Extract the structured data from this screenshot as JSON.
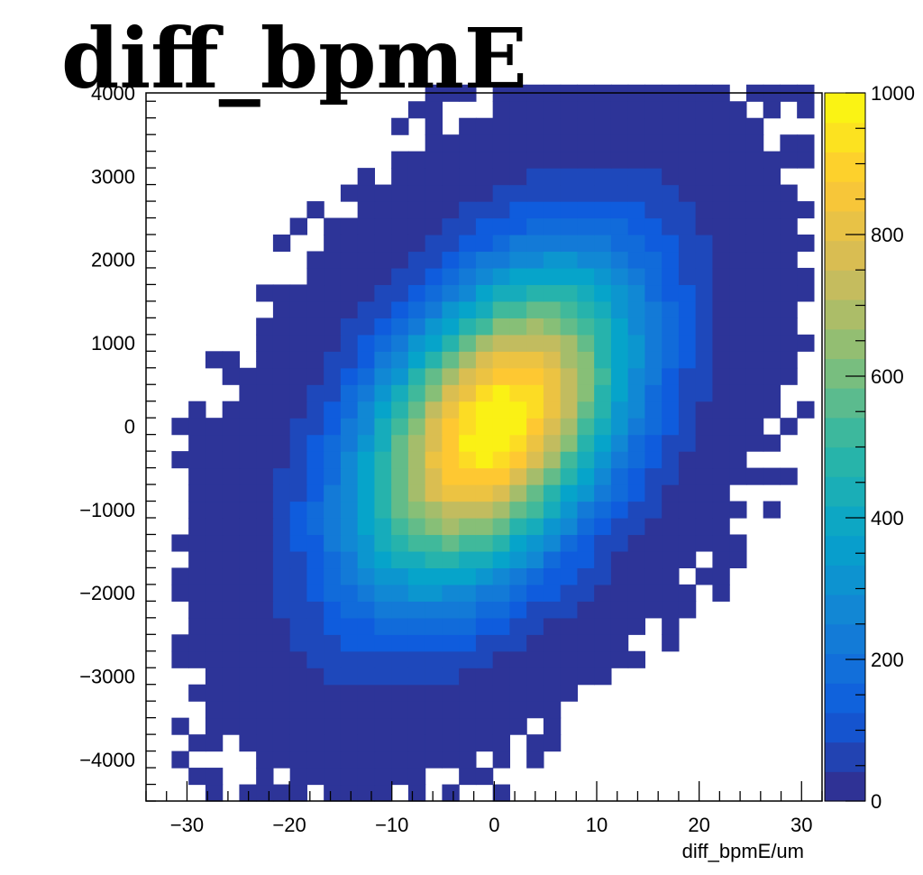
{
  "chart_data": {
    "type": "heatmap",
    "title": "diff_bpmE",
    "xlabel": "diff_bpmE/um",
    "ylabel": "",
    "xlim": [
      -34,
      32
    ],
    "ylim": [
      -4500,
      4000
    ],
    "x_ticks": [
      -30,
      -20,
      -10,
      0,
      10,
      20,
      30
    ],
    "x_tick_labels": [
      "−30",
      "−20",
      "−10",
      "0",
      "10",
      "20",
      "30"
    ],
    "y_ticks": [
      -4000,
      -3000,
      -2000,
      -1000,
      0,
      1000,
      2000,
      3000,
      4000
    ],
    "y_tick_labels": [
      "−4000",
      "−3000",
      "−2000",
      "−1000",
      "0",
      "1000",
      "2000",
      "3000",
      "4000"
    ],
    "colorbar": {
      "min": 0,
      "max": 1000,
      "ticks": [
        0,
        200,
        400,
        600,
        800,
        1000
      ],
      "tick_labels": [
        "0",
        "200",
        "400",
        "600",
        "800",
        "1000"
      ],
      "palette": [
        "#352a87",
        "#0f5cdd",
        "#1481d6",
        "#06a4ca",
        "#2eb7a4",
        "#87bf77",
        "#d1bb59",
        "#fec832",
        "#f9fb0e"
      ]
    },
    "distribution": {
      "shape": "bivariate-gaussian",
      "peak_counts": 1000,
      "center_x": 0,
      "center_y": 0,
      "sigma_x": 9,
      "sigma_y": 1300,
      "correlation": 0.45,
      "x_bin_width_um": 1.65,
      "y_bin_height": 200
    }
  },
  "colors": {
    "background": "#ffffff",
    "frame": "#000000"
  }
}
